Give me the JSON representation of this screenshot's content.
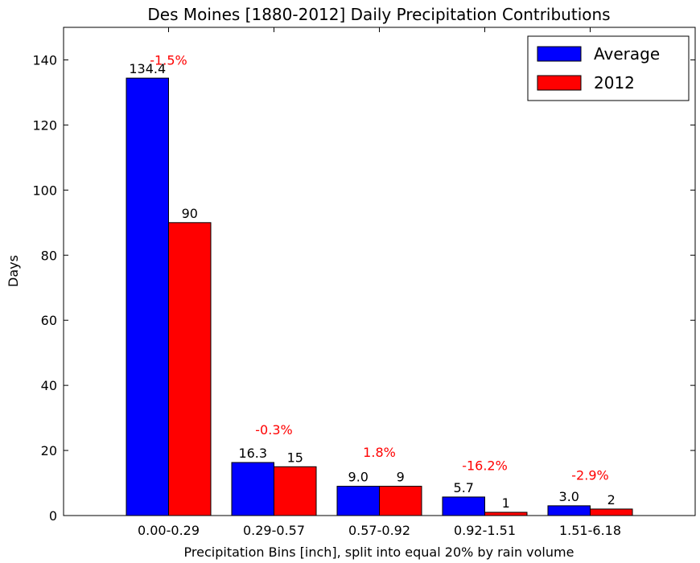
{
  "chart_data": {
    "type": "bar",
    "title": "Des Moines [1880-2012] Daily Precipitation Contributions",
    "xlabel": "Precipitation Bins [inch], split into equal 20% by rain volume",
    "ylabel": "Days",
    "ylim": [
      0,
      150
    ],
    "yticks": [
      "0",
      "20",
      "40",
      "60",
      "80",
      "100",
      "120",
      "140"
    ],
    "categories": [
      "0.00-0.29",
      "0.29-0.57",
      "0.57-0.92",
      "0.92-1.51",
      "1.51-6.18"
    ],
    "series": [
      {
        "name": "Average",
        "color": "#0000ff",
        "values": [
          134.4,
          16.3,
          9.0,
          5.7,
          3.0
        ],
        "labels": [
          "134.4",
          "16.3",
          "9.0",
          "5.7",
          "3.0"
        ]
      },
      {
        "name": "2012",
        "color": "#ff0000",
        "values": [
          90,
          15,
          9,
          1,
          2
        ],
        "labels": [
          "90",
          "15",
          "9",
          "1",
          "2"
        ]
      }
    ],
    "annotations": [
      "-1.5%",
      "-0.3%",
      "1.8%",
      "-16.2%",
      "-2.9%"
    ],
    "annotation_color": "#ff0000",
    "annotation_y": [
      140,
      26.5,
      19.5,
      15.5,
      12.5
    ],
    "legend_position": "top-right",
    "grid": false
  }
}
